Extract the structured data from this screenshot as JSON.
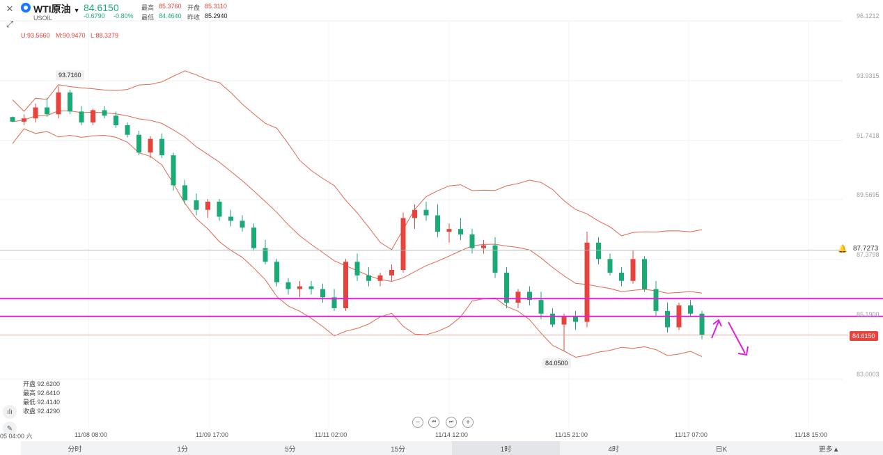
{
  "header": {
    "close_icon": "close-icon",
    "expand_icon": "expand-icon",
    "symbol": "WTI原油",
    "symbol_code": "USOIL",
    "price": "84.6150",
    "change": "-0.6790",
    "change_pct": "-0.80%",
    "high_label": "最高",
    "high_value": "85.3760",
    "open_label": "开盘",
    "open_value": "85.3110",
    "low_label": "最低",
    "low_value": "84.4640",
    "prev_label": "昨收",
    "prev_value": "85.2940"
  },
  "bands_legend": {
    "u": "U:93.5660",
    "m": "M:90.9470",
    "l": "L:88.3279"
  },
  "ohlc_panel": {
    "open": "开盘 92.6200",
    "high": "最高 92.6410",
    "low": "最低 92.4140",
    "close": "收盘 92.4290"
  },
  "y_axis": [
    "96.1212",
    "93.9315",
    "91.7418",
    "89.5695",
    "87.3798",
    "85.1900",
    "83.0003"
  ],
  "alert_price": "87.7273",
  "current_price_tag": "84.6150",
  "high_marker": "93.7160",
  "low_marker": "84.0500",
  "x_axis": [
    "05 04:00 六",
    "11/08 08:00",
    "11/09 17:00",
    "11/11 02:00",
    "11/14 12:00",
    "11/15 21:00",
    "11/17 07:00",
    "11/18 15:00"
  ],
  "controls": {
    "zoom_out": "−",
    "prev": "⏮",
    "next": "⏭",
    "zoom_in": "+"
  },
  "tabs": [
    {
      "label": "分时",
      "active": false
    },
    {
      "label": "1分",
      "active": false
    },
    {
      "label": "5分",
      "active": false
    },
    {
      "label": "15分",
      "active": false
    },
    {
      "label": "1时",
      "active": true
    },
    {
      "label": "4时",
      "active": false
    },
    {
      "label": "日K",
      "active": false
    },
    {
      "label": "更多▲",
      "active": false
    }
  ],
  "colors": {
    "up": "#e5433b",
    "down": "#1aaa75",
    "band": "#e0674f",
    "hline": "#e020d8",
    "arrow": "#e020d8"
  },
  "chart_data": {
    "type": "candlestick",
    "ylim": [
      83.0003,
      96.1212
    ],
    "candles": [
      [
        92.6,
        92.62,
        92.41,
        92.43
      ],
      [
        92.43,
        92.7,
        92.3,
        92.55
      ],
      [
        92.55,
        93.1,
        92.4,
        92.95
      ],
      [
        92.95,
        93.3,
        92.6,
        92.7
      ],
      [
        92.7,
        93.72,
        92.55,
        93.5
      ],
      [
        93.5,
        93.6,
        92.7,
        92.8
      ],
      [
        92.8,
        93.0,
        92.3,
        92.4
      ],
      [
        92.4,
        92.9,
        92.3,
        92.85
      ],
      [
        92.85,
        93.0,
        92.55,
        92.65
      ],
      [
        92.65,
        92.8,
        92.2,
        92.3
      ],
      [
        92.3,
        92.4,
        91.85,
        91.95
      ],
      [
        91.95,
        92.1,
        91.2,
        91.3
      ],
      [
        91.3,
        91.9,
        91.1,
        91.8
      ],
      [
        91.8,
        92.0,
        91.1,
        91.2
      ],
      [
        91.2,
        91.3,
        89.9,
        90.1
      ],
      [
        90.1,
        90.3,
        89.4,
        89.55
      ],
      [
        89.55,
        89.8,
        89.0,
        89.2
      ],
      [
        89.2,
        89.6,
        88.9,
        89.5
      ],
      [
        89.5,
        89.6,
        88.8,
        88.95
      ],
      [
        88.95,
        89.2,
        88.6,
        88.8
      ],
      [
        88.8,
        89.0,
        88.4,
        88.55
      ],
      [
        88.55,
        88.7,
        87.7,
        87.8
      ],
      [
        87.8,
        88.1,
        87.2,
        87.3
      ],
      [
        87.3,
        87.4,
        86.4,
        86.55
      ],
      [
        86.55,
        86.7,
        86.1,
        86.3
      ],
      [
        86.3,
        86.6,
        86.0,
        86.4
      ],
      [
        86.4,
        86.6,
        86.1,
        86.3
      ],
      [
        86.3,
        86.5,
        85.8,
        86.0
      ],
      [
        86.0,
        86.3,
        85.5,
        85.6
      ],
      [
        85.6,
        87.4,
        85.5,
        87.3
      ],
      [
        87.3,
        87.6,
        86.6,
        86.8
      ],
      [
        86.8,
        87.1,
        86.4,
        86.6
      ],
      [
        86.6,
        86.9,
        86.4,
        86.8
      ],
      [
        86.8,
        87.2,
        86.6,
        87.0
      ],
      [
        87.0,
        89.1,
        86.9,
        88.9
      ],
      [
        88.9,
        89.4,
        88.5,
        89.2
      ],
      [
        89.2,
        89.5,
        88.8,
        89.0
      ],
      [
        89.0,
        89.4,
        88.2,
        88.4
      ],
      [
        88.4,
        88.7,
        88.0,
        88.5
      ],
      [
        88.5,
        88.9,
        88.1,
        88.3
      ],
      [
        88.3,
        88.5,
        87.6,
        87.8
      ],
      [
        87.8,
        88.1,
        87.6,
        87.9
      ],
      [
        87.9,
        88.2,
        86.7,
        86.9
      ],
      [
        86.9,
        87.1,
        85.6,
        85.8
      ],
      [
        85.8,
        86.3,
        85.6,
        86.2
      ],
      [
        86.2,
        86.4,
        85.7,
        85.9
      ],
      [
        85.9,
        86.2,
        85.2,
        85.4
      ],
      [
        85.4,
        85.6,
        84.9,
        85.0
      ],
      [
        85.0,
        85.4,
        84.05,
        85.3
      ],
      [
        85.3,
        85.5,
        84.8,
        85.1
      ],
      [
        85.1,
        88.4,
        84.9,
        88.0
      ],
      [
        88.0,
        88.2,
        87.2,
        87.4
      ],
      [
        87.4,
        87.6,
        86.8,
        86.9
      ],
      [
        86.9,
        87.1,
        86.4,
        86.6
      ],
      [
        86.6,
        87.7,
        86.5,
        87.4
      ],
      [
        87.4,
        87.5,
        86.2,
        86.3
      ],
      [
        86.3,
        86.6,
        85.3,
        85.5
      ],
      [
        85.5,
        85.8,
        84.7,
        84.9
      ],
      [
        84.9,
        85.8,
        84.8,
        85.7
      ],
      [
        85.7,
        85.9,
        85.3,
        85.4
      ],
      [
        85.4,
        85.5,
        84.46,
        84.62
      ]
    ],
    "bollinger": {
      "upper": "U:93.5660",
      "middle": "M:90.9470",
      "lower": "L:88.3279"
    },
    "alert_line": 87.7273,
    "current_price": 84.615,
    "horizontal_lines": [
      85.95,
      85.3
    ]
  }
}
